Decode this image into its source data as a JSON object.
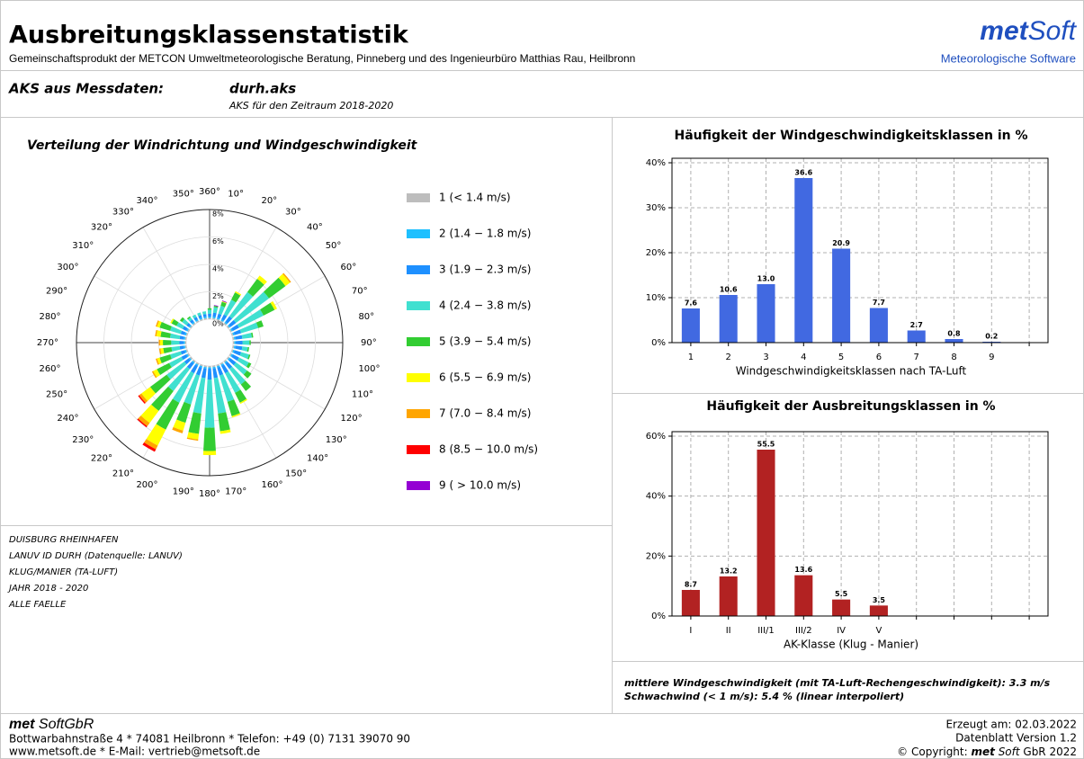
{
  "header": {
    "title": "Ausbreitungsklassenstatistik",
    "subtitle": "Gemeinschaftsprodukt der METCON Umweltmeteorologische Beratung, Pinneberg und des Ingenieurbüro Matthias Rau, Heilbronn",
    "logo_bold": "met",
    "logo_rest": "Soft",
    "logo_tagline": "Meteorologische Software"
  },
  "source": {
    "label": "AKS aus Messdaten:",
    "file": "durh.aks",
    "period": "AKS für den Zeitraum 2018-2020"
  },
  "notes": [
    "DUISBURG RHEINHAFEN",
    "LANUV ID DURH (Datenquelle: LANUV)",
    "KLUG/MANIER (TA-LUFT)",
    "JAHR 2018 - 2020",
    "ALLE FAELLE"
  ],
  "summary": [
    "mittlere Windgeschwindigkeit (mit TA-Luft-Rechengeschwindigkeit): 3.3 m/s",
    "Schwachwind (< 1 m/s): 5.4 % (linear interpoliert)"
  ],
  "footer": {
    "company_bold": "met",
    "company_rest": " SoftGbR",
    "address": "Bottwarbahnstraße 4 * 74081 Heilbronn * Telefon: +49 (0) 7131 39070 90",
    "web": "www.metsoft.de * E-Mail: vertrieb@metsoft.de",
    "created": "Erzeugt am: 02.03.2022",
    "version": "Datenblatt Version 1.2",
    "copyright_pre": "© Copyright: ",
    "copyright_bold": "met",
    "copyright_mid": " Soft",
    "copyright_post": " GbR 2022"
  },
  "chart_data": [
    {
      "type": "windrose",
      "title": "Verteilung der Windrichtung und Windgeschwindigkeit",
      "x": [
        10,
        20,
        30,
        40,
        50,
        60,
        70,
        80,
        90,
        100,
        110,
        120,
        130,
        140,
        150,
        160,
        170,
        180,
        190,
        200,
        210,
        220,
        230,
        240,
        250,
        260,
        270,
        280,
        290,
        300,
        310,
        320,
        330,
        340,
        350,
        360
      ],
      "xticks": [
        {
          "value": 10,
          "label": "10°"
        },
        {
          "value": 20,
          "label": "20°"
        },
        {
          "value": 30,
          "label": "30°"
        },
        {
          "value": 40,
          "label": "40°"
        },
        {
          "value": 50,
          "label": "50°"
        },
        {
          "value": 60,
          "label": "60°"
        },
        {
          "value": 70,
          "label": "70°"
        },
        {
          "value": 80,
          "label": "80°"
        },
        {
          "value": 90,
          "label": "90°"
        },
        {
          "value": 100,
          "label": "100°"
        },
        {
          "value": 110,
          "label": "110°"
        },
        {
          "value": 120,
          "label": "120°"
        },
        {
          "value": 130,
          "label": "130°"
        },
        {
          "value": 140,
          "label": "140°"
        },
        {
          "value": 150,
          "label": "150°"
        },
        {
          "value": 160,
          "label": "160°"
        },
        {
          "value": 170,
          "label": "170°"
        },
        {
          "value": 180,
          "label": "180°"
        },
        {
          "value": 190,
          "label": "190°"
        },
        {
          "value": 200,
          "label": "200°"
        },
        {
          "value": 210,
          "label": "210°"
        },
        {
          "value": 220,
          "label": "220°"
        },
        {
          "value": 230,
          "label": "230°"
        },
        {
          "value": 240,
          "label": "240°"
        },
        {
          "value": 250,
          "label": "250°"
        },
        {
          "value": 260,
          "label": "260°"
        },
        {
          "value": 270,
          "label": "270°"
        },
        {
          "value": 280,
          "label": "280°"
        },
        {
          "value": 290,
          "label": "290°"
        },
        {
          "value": 300,
          "label": "300°"
        },
        {
          "value": 310,
          "label": "310°"
        },
        {
          "value": 320,
          "label": "320°"
        },
        {
          "value": 330,
          "label": "330°"
        },
        {
          "value": 340,
          "label": "340°"
        },
        {
          "value": 350,
          "label": "350°"
        },
        {
          "value": 360,
          "label": "360°"
        }
      ],
      "rlim": [
        0,
        8
      ],
      "rticks": [
        {
          "value": 0,
          "label": "0%"
        },
        {
          "value": 2,
          "label": "2%"
        },
        {
          "value": 4,
          "label": "4%"
        },
        {
          "value": 6,
          "label": "6%"
        },
        {
          "value": 8,
          "label": "8%"
        }
      ],
      "series": [
        {
          "name": "1 (< 1.4 m/s)",
          "color": "#bdbdbd",
          "values": [
            0.1,
            0.1,
            0.1,
            0.1,
            0.1,
            0.1,
            0.1,
            0.1,
            0.1,
            0.1,
            0.1,
            0.1,
            0.1,
            0.1,
            0.1,
            0.1,
            0.1,
            0.1,
            0.1,
            0.1,
            0.1,
            0.1,
            0.1,
            0.1,
            0.1,
            0.1,
            0.1,
            0.1,
            0.1,
            0.1,
            0.1,
            0.1,
            0.1,
            0.1,
            0.1,
            0.1
          ]
        },
        {
          "name": "2 (1.4 − 1.8 m/s)",
          "color": "#1ec0ff",
          "values": [
            0.1,
            0.1,
            0.1,
            0.1,
            0.1,
            0.1,
            0.1,
            0.1,
            0.1,
            0.1,
            0.1,
            0.1,
            0.1,
            0.1,
            0.1,
            0.1,
            0.1,
            0.1,
            0.1,
            0.1,
            0.1,
            0.1,
            0.1,
            0.1,
            0.1,
            0.1,
            0.1,
            0.1,
            0.1,
            0.1,
            0.1,
            0.1,
            0.1,
            0.1,
            0.1,
            0.1
          ]
        },
        {
          "name": "3 (1.9 − 2.3 m/s)",
          "color": "#1e90ff",
          "values": [
            0.3,
            0.3,
            0.4,
            0.5,
            0.5,
            0.5,
            0.5,
            0.5,
            0.5,
            0.5,
            0.5,
            0.5,
            0.5,
            0.5,
            0.6,
            0.6,
            0.7,
            0.8,
            0.7,
            0.6,
            0.6,
            0.5,
            0.4,
            0.4,
            0.3,
            0.3,
            0.3,
            0.3,
            0.3,
            0.3,
            0.2,
            0.2,
            0.2,
            0.2,
            0.2,
            0.2
          ]
        },
        {
          "name": "4 (2.4 − 3.8 m/s)",
          "color": "#40e0d0",
          "values": [
            0.4,
            0.6,
            1.2,
            2.2,
            3.0,
            2.0,
            1.3,
            0.7,
            0.5,
            0.4,
            0.6,
            0.8,
            1.0,
            1.4,
            1.6,
            2.0,
            2.6,
            3.5,
            2.6,
            2.2,
            2.4,
            2.0,
            1.6,
            1.0,
            0.8,
            0.6,
            0.6,
            0.7,
            0.8,
            0.5,
            0.4,
            0.2,
            0.2,
            0.2,
            0.2,
            0.3
          ]
        },
        {
          "name": "5 (3.9 − 5.4 m/s)",
          "color": "#32cd32",
          "values": [
            0.1,
            0.3,
            0.6,
            1.2,
            1.5,
            0.9,
            0.4,
            0.1,
            0.1,
            0.1,
            0.1,
            0.2,
            0.4,
            0.6,
            0.8,
            1.1,
            1.3,
            1.7,
            1.5,
            1.4,
            2.2,
            1.8,
            1.5,
            1.0,
            0.8,
            0.6,
            0.6,
            0.7,
            0.8,
            0.4,
            0.2,
            0.1,
            0,
            0,
            0,
            0.1
          ]
        },
        {
          "name": "6 (5.5 − 6.9 m/s)",
          "color": "#ffff00",
          "values": [
            0,
            0.05,
            0.1,
            0.3,
            0.4,
            0.2,
            0,
            0,
            0,
            0,
            0,
            0,
            0,
            0,
            0.1,
            0.1,
            0.2,
            0.3,
            0.4,
            0.6,
            1.3,
            1.1,
            0.8,
            0.3,
            0.2,
            0.2,
            0.2,
            0.3,
            0.2,
            0.1,
            0,
            0,
            0,
            0,
            0,
            0
          ]
        },
        {
          "name": "7 (7.0 − 8.4 m/s)",
          "color": "#ffa500",
          "values": [
            0,
            0,
            0,
            0,
            0.1,
            0,
            0,
            0,
            0,
            0,
            0,
            0,
            0,
            0,
            0,
            0,
            0,
            0,
            0.1,
            0.2,
            0.3,
            0.3,
            0.2,
            0.1,
            0.1,
            0.1,
            0.1,
            0.1,
            0.1,
            0,
            0,
            0,
            0,
            0,
            0,
            0
          ]
        },
        {
          "name": "8 (8.5 − 10.0 m/s)",
          "color": "#ff0000",
          "values": [
            0,
            0,
            0,
            0,
            0,
            0,
            0,
            0,
            0,
            0,
            0,
            0,
            0,
            0,
            0,
            0,
            0,
            0,
            0,
            0,
            0.2,
            0.1,
            0.1,
            0,
            0,
            0,
            0,
            0,
            0,
            0,
            0,
            0,
            0,
            0,
            0,
            0
          ]
        },
        {
          "name": "9 ( > 10.0 m/s)",
          "color": "#9400d3",
          "values": [
            0.05,
            0.05,
            0,
            0,
            0,
            0,
            0,
            0,
            0,
            0,
            0,
            0,
            0,
            0,
            0,
            0,
            0,
            0,
            0,
            0,
            0,
            0,
            0,
            0,
            0,
            0,
            0,
            0,
            0,
            0,
            0,
            0,
            0,
            0,
            0,
            0
          ]
        }
      ]
    },
    {
      "type": "bar",
      "title": "Häufigkeit der Windgeschwindigkeitsklassen in %",
      "x_label": "Windgeschwindigkeitsklassen nach TA-Luft",
      "categories": [
        "1",
        "2",
        "3",
        "4",
        "5",
        "6",
        "7",
        "8",
        "9",
        null
      ],
      "values": [
        7.6,
        10.6,
        13.0,
        36.6,
        20.9,
        7.7,
        2.7,
        0.8,
        0.2,
        null
      ],
      "value_labels": [
        "7.6",
        "10.6",
        "13.0",
        "36.6",
        "20.9",
        "7.7",
        "2.7",
        "0.8",
        "0.2",
        null
      ],
      "color": "#4169e1",
      "ylim": [
        0,
        41
      ],
      "yticks": [
        {
          "value": 0,
          "label": "0%"
        },
        {
          "value": 10,
          "label": "10%"
        },
        {
          "value": 20,
          "label": "20%"
        },
        {
          "value": 30,
          "label": "30%"
        },
        {
          "value": 40,
          "label": "40%"
        }
      ],
      "grid": true
    },
    {
      "type": "bar",
      "title": "Häufigkeit der Ausbreitungsklassen in %",
      "x_label": "AK-Klasse (Klug - Manier)",
      "categories": [
        "I",
        "II",
        "III/1",
        "III/2",
        "IV",
        "V",
        null,
        null,
        null,
        null
      ],
      "values": [
        8.7,
        13.2,
        55.5,
        13.6,
        5.5,
        3.5,
        null,
        null,
        null,
        null
      ],
      "value_labels": [
        "8.7",
        "13.2",
        "55.5",
        "13.6",
        "5.5",
        "3.5",
        null,
        null,
        null,
        null
      ],
      "color": "#b22222",
      "ylim": [
        0,
        61.5
      ],
      "yticks": [
        {
          "value": 0,
          "label": "0%"
        },
        {
          "value": 20,
          "label": "20%"
        },
        {
          "value": 40,
          "label": "40%"
        },
        {
          "value": 60,
          "label": "60%"
        }
      ],
      "grid": true
    }
  ]
}
